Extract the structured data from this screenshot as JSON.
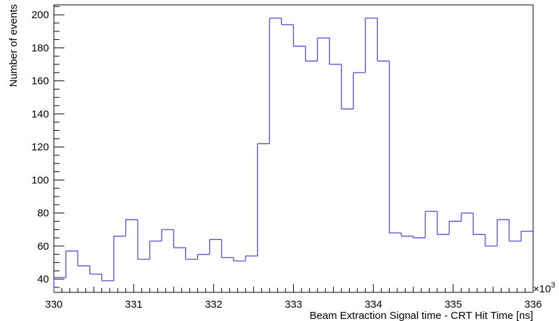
{
  "chart_data": {
    "type": "bar",
    "style": "step-histogram",
    "xlabel": "Beam Extraction Signal time - CRT Hit Time [ns]",
    "ylabel": "Number of events",
    "x_multiplier_label": "×10",
    "x_multiplier_exponent": "3",
    "xlim": [
      330,
      336
    ],
    "ylim": [
      32,
      206
    ],
    "grid": false,
    "line_color": "#4b4bd6",
    "bin_width": 0.15,
    "bin_edges_start": 330.0,
    "values": [
      41,
      57,
      48,
      43,
      39,
      66,
      76,
      52,
      63,
      70,
      59,
      52,
      55,
      64,
      53,
      51,
      54,
      122,
      198,
      194,
      181,
      172,
      186,
      170,
      143,
      165,
      198,
      172,
      68,
      66,
      65,
      81,
      67,
      75,
      80,
      67,
      60,
      76,
      63,
      69
    ],
    "x_ticks": [
      "330",
      "331",
      "332",
      "333",
      "334",
      "335",
      "336"
    ],
    "y_ticks": [
      "40",
      "60",
      "80",
      "100",
      "120",
      "140",
      "160",
      "180",
      "200"
    ]
  }
}
